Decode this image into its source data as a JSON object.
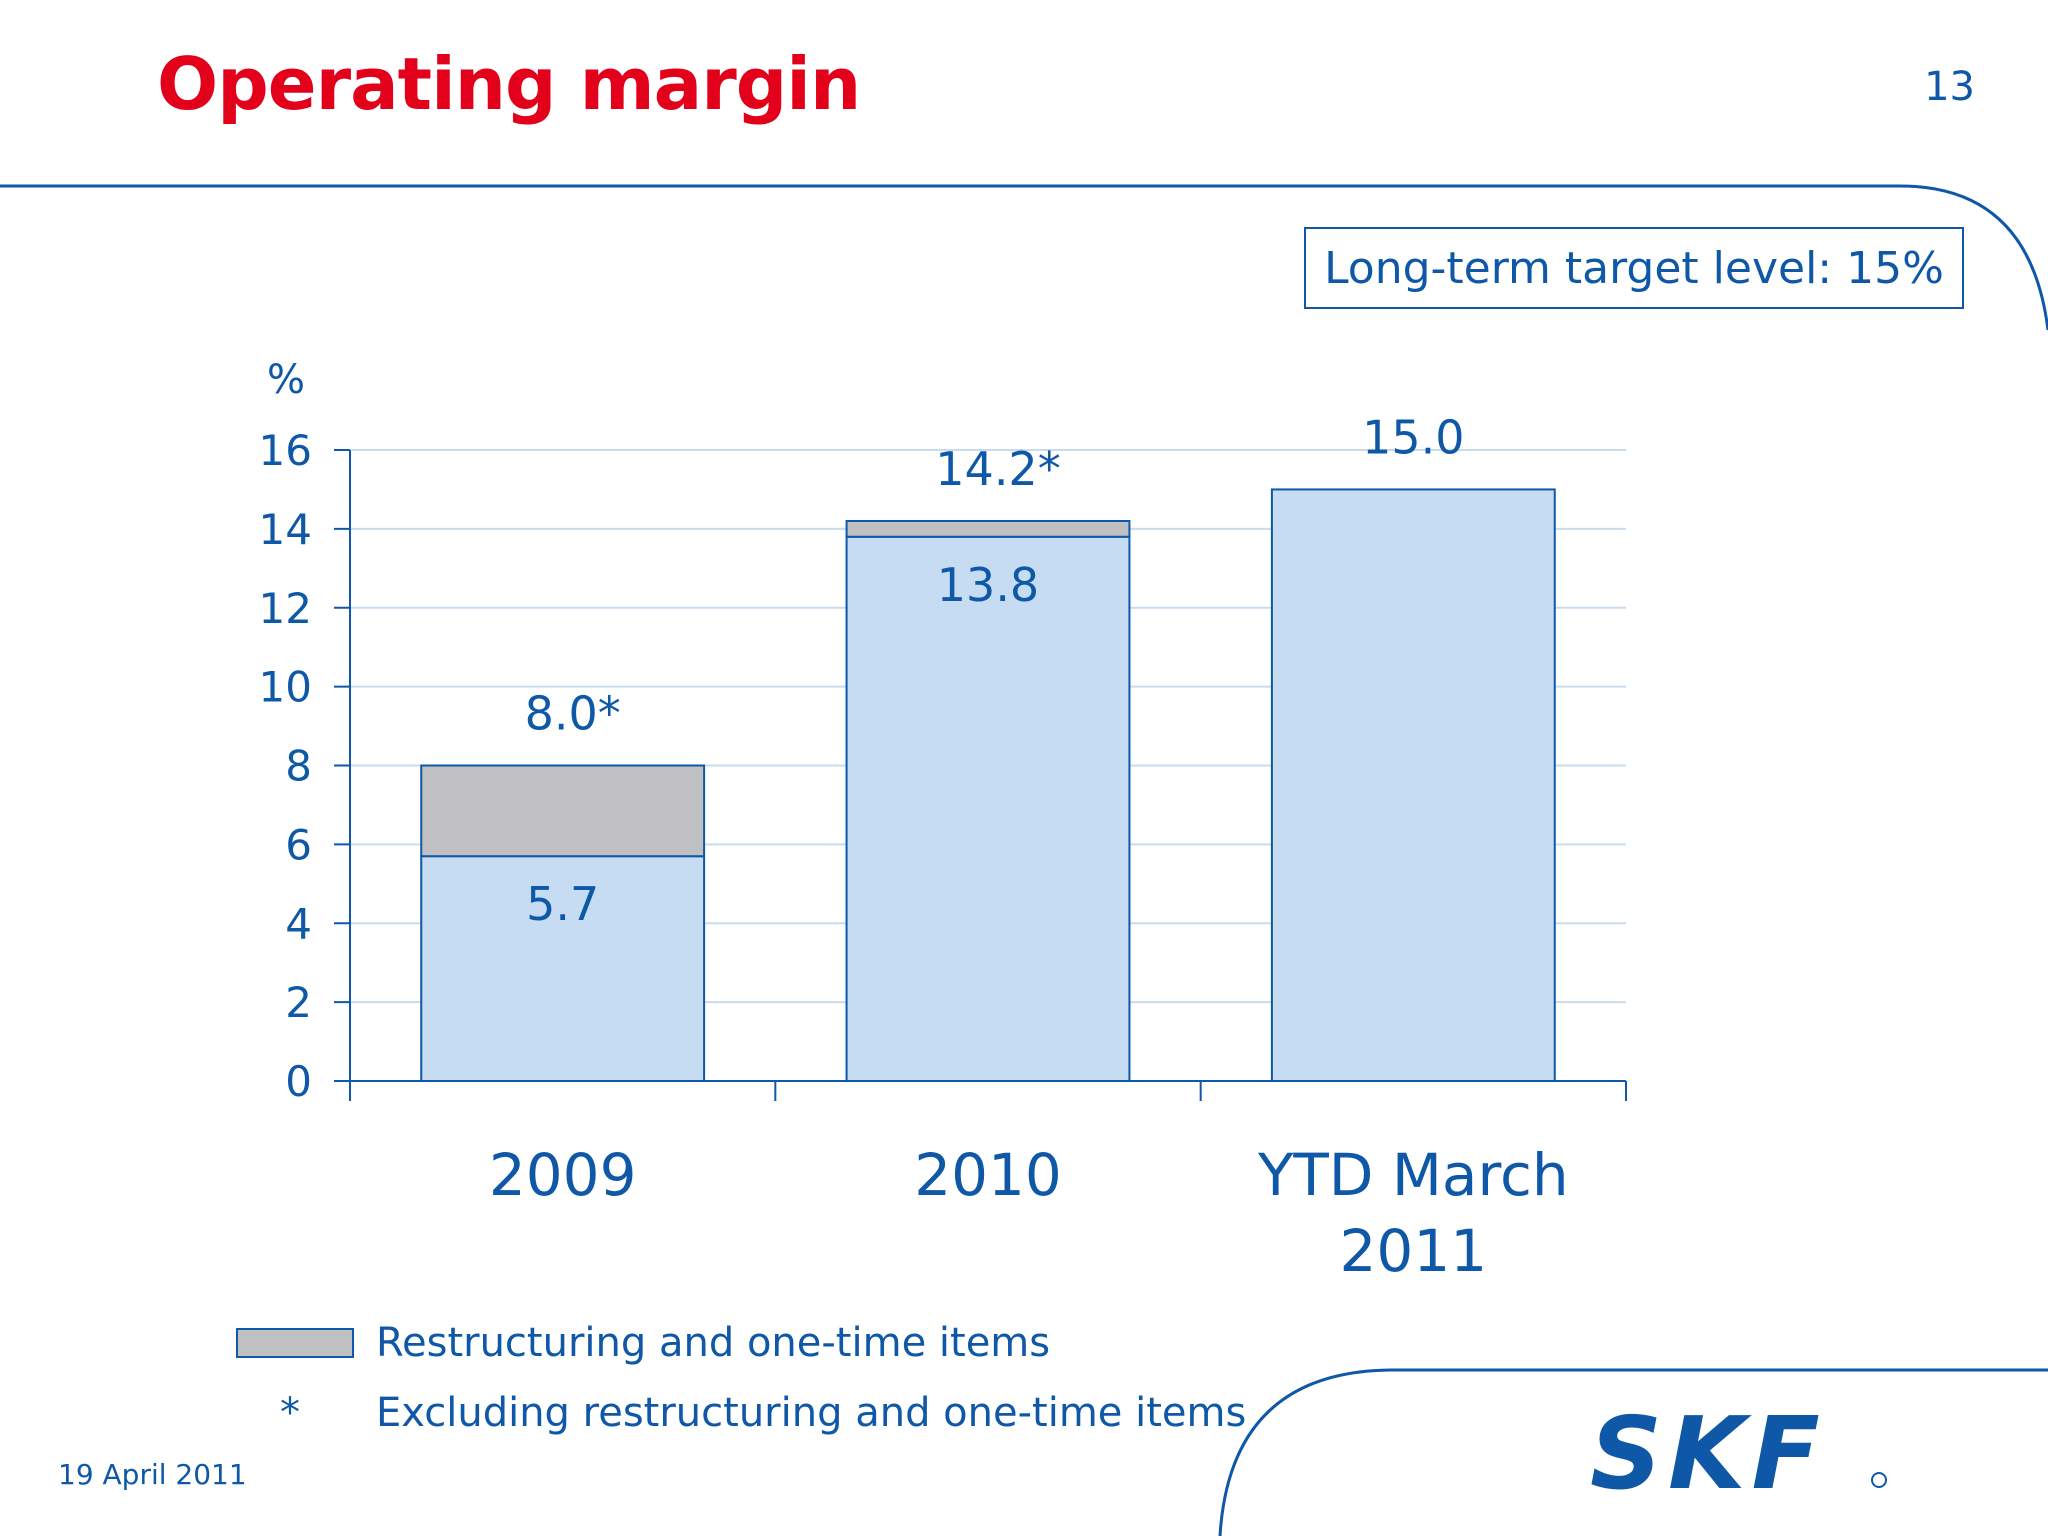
{
  "slide": {
    "title": "Operating margin",
    "page_number": "13",
    "target_note": "Long-term target level: 15%",
    "date": "19 April 2011",
    "legend": {
      "restructuring_label": "Restructuring and one-time items",
      "star_symbol": "*",
      "excluding_label": "Excluding restructuring and one-time items"
    },
    "logo_text": "SKF",
    "colors": {
      "title": "#e2001a",
      "accent_blue": "#0f58a8",
      "bar_fill": "#c5dcf2",
      "restructuring_fill": "#c0c0c2",
      "gridline": "#c9dcef"
    }
  },
  "chart_data": {
    "type": "bar",
    "stacked": true,
    "categories": [
      [
        "2009"
      ],
      [
        "2010"
      ],
      [
        "YTD March",
        "2011"
      ]
    ],
    "series": [
      {
        "name": "",
        "values": [
          5.7,
          13.8,
          15.0
        ]
      },
      {
        "name": "Restructuring and one-time items",
        "values": [
          2.3,
          0.4,
          0
        ]
      }
    ],
    "data_labels": {
      "base": [
        "5.7",
        "13.8",
        null
      ],
      "top": [
        "8.0*",
        "14.2*",
        "15.0"
      ]
    },
    "ylabel": "%",
    "yticks": [
      0,
      2,
      4,
      6,
      8,
      10,
      12,
      14,
      16
    ],
    "ylim": [
      0,
      16
    ],
    "grid": true
  }
}
